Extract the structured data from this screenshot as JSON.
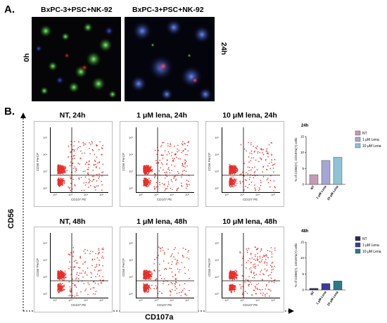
{
  "panel_a": {
    "letter": "A.",
    "image_left_title": "BxPC-3+PSC+NK-92",
    "image_right_title": "BxPC-3+PSC+NK-92",
    "time_left": "0h",
    "time_right": "24h"
  },
  "panel_b": {
    "letter": "B.",
    "y_axis": "CD56",
    "x_axis": "CD107a",
    "plot_titles": [
      "NT, 24h",
      "1 μM lena, 24h",
      "10 μM lena, 24h",
      "NT, 48h",
      "1 μM lena, 48h",
      "10 μM lena, 48h"
    ],
    "plot_y_label": "CD56 PerCP",
    "plot_x_label": "CD107 PE",
    "plot_ticks": [
      "10²",
      "10³",
      "10⁴",
      "10⁵"
    ]
  },
  "chart_data": [
    {
      "type": "bar",
      "title": "24h",
      "ylabel": "% of CD56(+), CD107a(+) cells",
      "categories": [
        "NT",
        "1 μM Lena",
        "10 μM Lena"
      ],
      "values": [
        3,
        7.5,
        8.5
      ],
      "ylim": [
        0,
        15
      ],
      "yticks": [
        "0",
        "5",
        "10",
        "15"
      ],
      "colors": [
        "#c39bb8",
        "#a6a6d6",
        "#8ec3d6"
      ],
      "legend": "right"
    },
    {
      "type": "bar",
      "title": "48h",
      "ylabel": "% of CD56(+), CD107a(+) cells",
      "categories": [
        "NT",
        "1 μM Lena",
        "10 μM Lena"
      ],
      "values": [
        0.5,
        2,
        2.8
      ],
      "ylim": [
        0,
        15
      ],
      "yticks": [
        "0",
        "5",
        "10",
        "15"
      ],
      "colors": [
        "#2b2b59",
        "#3b3b9e",
        "#2a7a8a"
      ],
      "legend": "right"
    }
  ]
}
